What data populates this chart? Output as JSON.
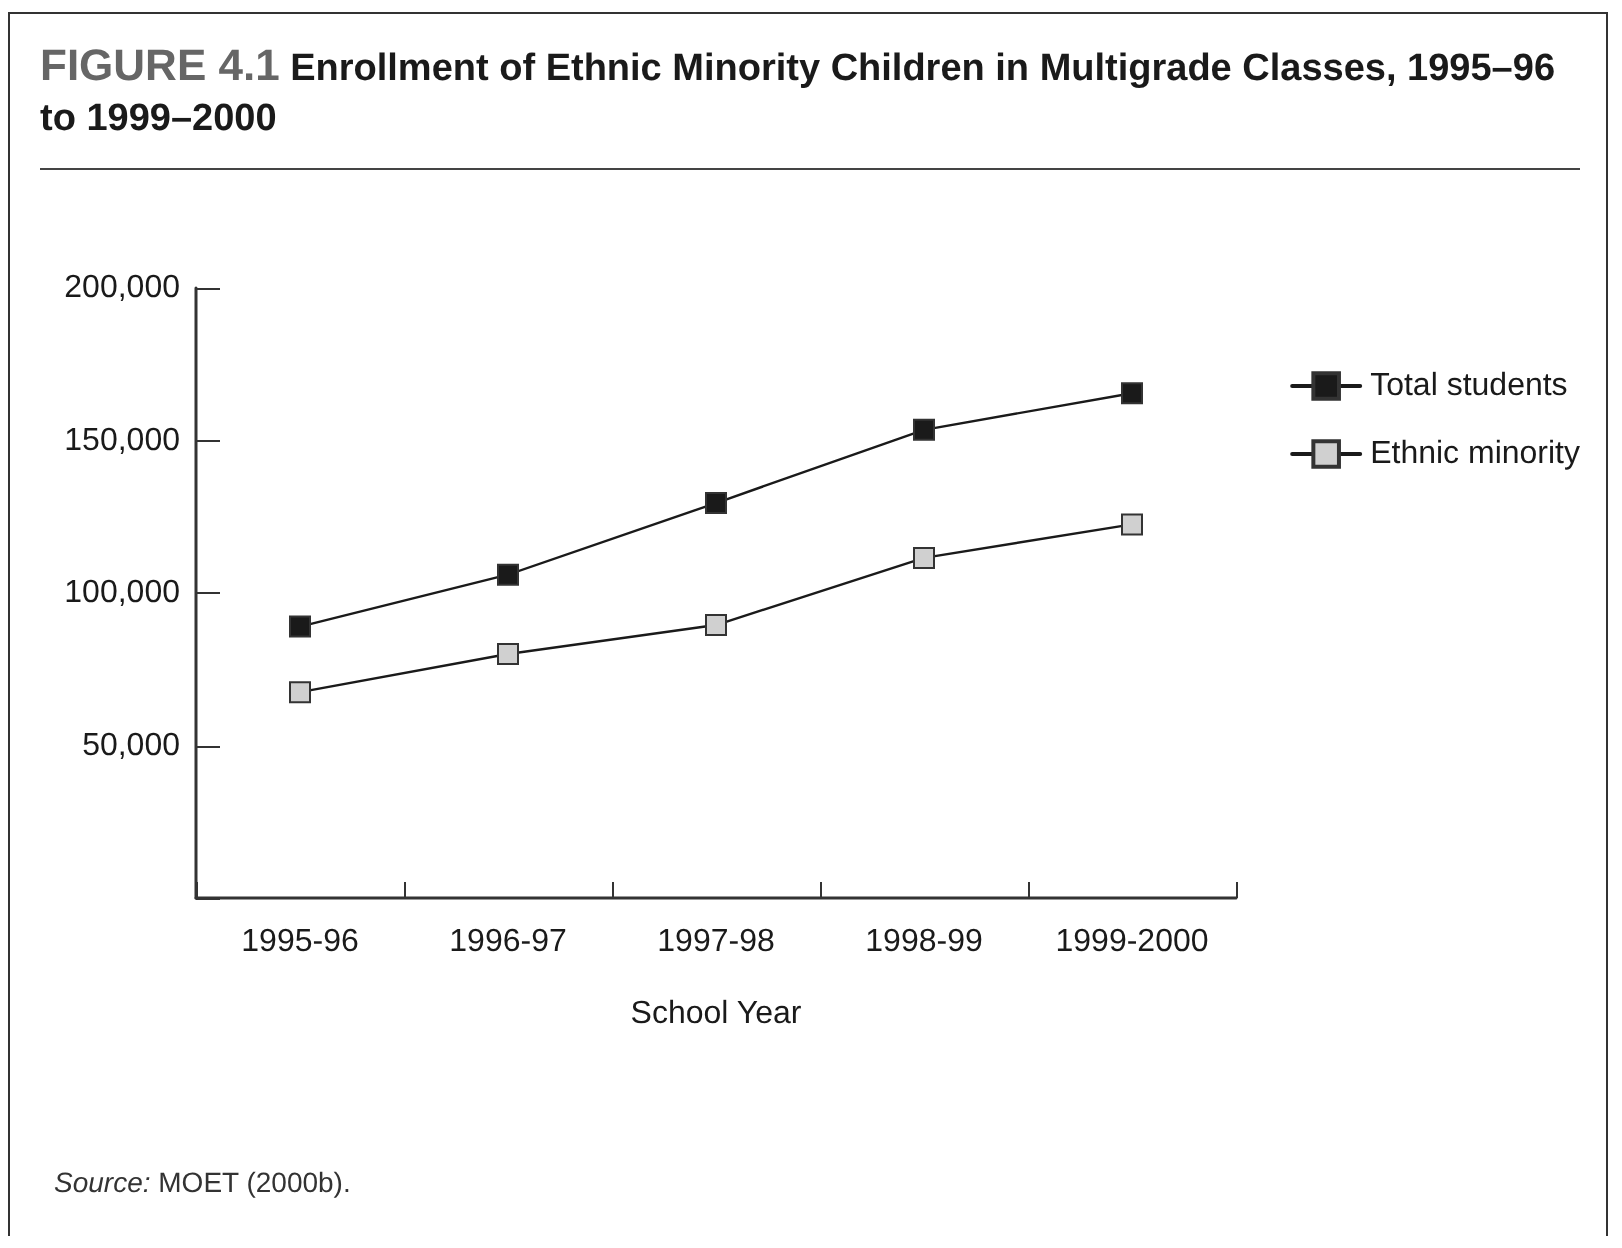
{
  "chart_data": {
    "type": "line",
    "title": "FIGURE 4.1 Enrollment of Ethnic Minority Children in Multigrade Classes, 1995–96 to 1999–2000",
    "xlabel": "School Year",
    "categories": [
      "1995-96",
      "1996-97",
      "1997-98",
      "1998-99",
      "1999-2000"
    ],
    "series": [
      {
        "name": "Total students",
        "color": "#1a1a1a",
        "values": [
          89000,
          106000,
          129500,
          153500,
          165500
        ]
      },
      {
        "name": "Ethnic minority",
        "color": "#d0d0d0",
        "values": [
          67500,
          80000,
          89500,
          111500,
          122500
        ]
      }
    ],
    "ylim": [
      0,
      200000
    ],
    "yticks": [
      {
        "value": 0,
        "label": null
      },
      {
        "value": 50000,
        "label": "50,000"
      },
      {
        "value": 100000,
        "label": "100,000"
      },
      {
        "value": 150000,
        "label": "150,000"
      },
      {
        "value": 200000,
        "label": "200,000"
      }
    ],
    "grid": false,
    "legend": "right",
    "marker": "square",
    "line_style": "solid",
    "annotations": [
      "Source: MOET (2000b)."
    ]
  }
}
